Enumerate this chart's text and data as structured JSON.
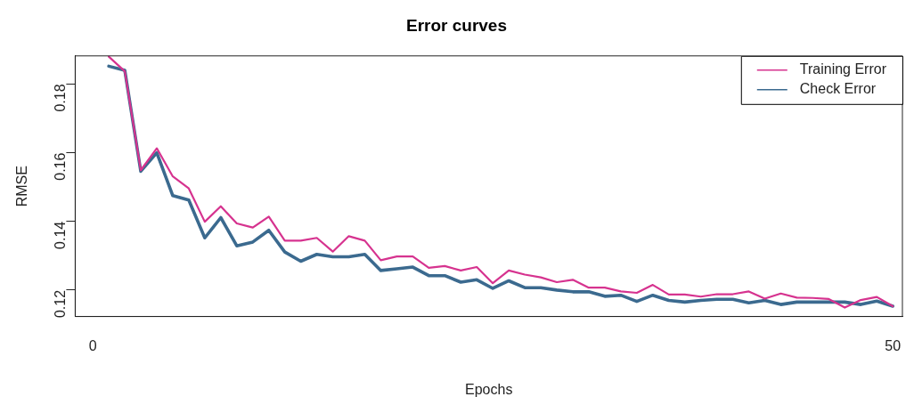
{
  "chart_data": {
    "type": "line",
    "title": "Error curves",
    "xlabel": "Epochs",
    "ylabel": "RMSE",
    "x": [
      1,
      2,
      3,
      4,
      5,
      6,
      7,
      8,
      9,
      10,
      11,
      12,
      13,
      14,
      15,
      16,
      17,
      18,
      19,
      20,
      21,
      22,
      23,
      24,
      25,
      26,
      27,
      28,
      29,
      30,
      31,
      32,
      33,
      34,
      35,
      36,
      37,
      38,
      39,
      40,
      41,
      42,
      43,
      44,
      45,
      46,
      47,
      48,
      49,
      50
    ],
    "series": [
      {
        "name": "Training Error",
        "color": "#d6338f",
        "values": [
          0.188,
          0.1837,
          0.1549,
          0.1613,
          0.1531,
          0.1496,
          0.1399,
          0.1444,
          0.1394,
          0.1382,
          0.1414,
          0.1344,
          0.1344,
          0.1352,
          0.1312,
          0.1357,
          0.1344,
          0.1287,
          0.1298,
          0.1298,
          0.1265,
          0.127,
          0.1257,
          0.1267,
          0.122,
          0.1257,
          0.1245,
          0.1237,
          0.1223,
          0.123,
          0.1207,
          0.1207,
          0.1196,
          0.1192,
          0.1215,
          0.1187,
          0.1187,
          0.1181,
          0.1188,
          0.1188,
          0.1196,
          0.1175,
          0.119,
          0.1178,
          0.1177,
          0.1174,
          0.1149,
          0.1171,
          0.118,
          0.1153
        ]
      },
      {
        "name": "Check Error",
        "color": "#3b6a8f",
        "values": [
          0.1852,
          0.184,
          0.1546,
          0.16,
          0.1475,
          0.1462,
          0.1352,
          0.1411,
          0.1329,
          0.134,
          0.1374,
          0.1311,
          0.1284,
          0.1304,
          0.1297,
          0.1297,
          0.1304,
          0.1257,
          0.1262,
          0.1267,
          0.1242,
          0.1242,
          0.1223,
          0.123,
          0.1205,
          0.1227,
          0.1207,
          0.1207,
          0.12,
          0.1195,
          0.1195,
          0.1182,
          0.1185,
          0.1167,
          0.1185,
          0.117,
          0.1165,
          0.117,
          0.1173,
          0.1173,
          0.1163,
          0.117,
          0.1158,
          0.1165,
          0.1165,
          0.1165,
          0.1165,
          0.1158,
          0.1168,
          0.1153
        ]
      }
    ],
    "xlim": [
      -1.1,
      50.6
    ],
    "xticks": [
      0,
      50
    ],
    "ylim": [
      0.1123,
      0.1882
    ],
    "yticks": [
      0.12,
      0.14,
      0.16,
      0.18
    ],
    "legend": "top right",
    "line_style": "solid",
    "marker": "none"
  }
}
